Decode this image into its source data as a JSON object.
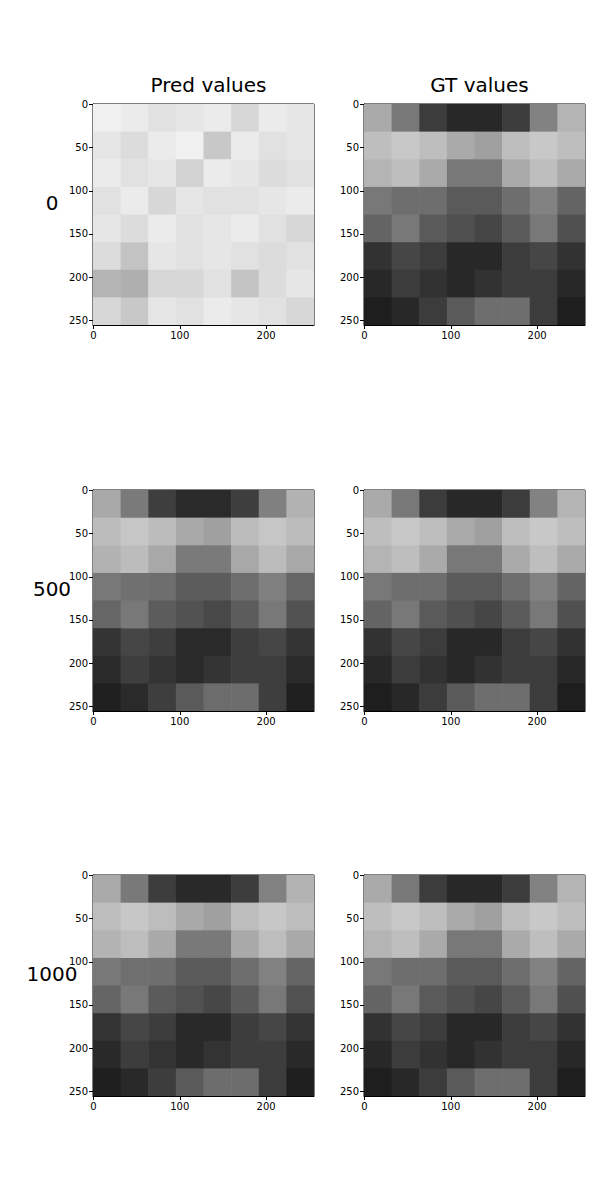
{
  "chart_data": [
    {
      "type": "image",
      "title": "Pred values",
      "ylabel": "0",
      "xlim": [
        -0.5,
        255.5
      ],
      "ylim": [
        255.5,
        -0.5
      ],
      "xticks": [
        0,
        100,
        200
      ],
      "yticks": [
        0,
        50,
        100,
        150,
        200,
        250
      ],
      "cells": [
        [
          240,
          235,
          225,
          230,
          235,
          215,
          235,
          230
        ],
        [
          230,
          220,
          235,
          240,
          200,
          235,
          225,
          230
        ],
        [
          235,
          225,
          230,
          210,
          235,
          230,
          220,
          225
        ],
        [
          225,
          235,
          215,
          230,
          225,
          225,
          230,
          235
        ],
        [
          230,
          220,
          235,
          225,
          230,
          235,
          225,
          215
        ],
        [
          220,
          195,
          230,
          225,
          230,
          225,
          220,
          225
        ],
        [
          180,
          175,
          215,
          215,
          225,
          195,
          220,
          230
        ],
        [
          215,
          200,
          230,
          225,
          235,
          230,
          225,
          215
        ]
      ]
    },
    {
      "type": "image",
      "title": "GT values",
      "xlim": [
        -0.5,
        255.5
      ],
      "ylim": [
        255.5,
        -0.5
      ],
      "xticks": [
        0,
        100,
        200
      ],
      "yticks": [
        0,
        50,
        100,
        150,
        200,
        250
      ],
      "cells": [
        [
          170,
          120,
          60,
          40,
          40,
          60,
          130,
          180
        ],
        [
          190,
          200,
          190,
          170,
          160,
          190,
          200,
          190
        ],
        [
          180,
          190,
          170,
          120,
          120,
          170,
          190,
          170
        ],
        [
          120,
          110,
          110,
          90,
          90,
          110,
          130,
          100
        ],
        [
          100,
          120,
          90,
          80,
          70,
          90,
          120,
          80
        ],
        [
          50,
          70,
          60,
          40,
          40,
          60,
          70,
          50
        ],
        [
          40,
          60,
          50,
          40,
          50,
          60,
          60,
          40
        ],
        [
          30,
          40,
          60,
          90,
          110,
          110,
          60,
          30
        ]
      ]
    },
    {
      "type": "image",
      "ylabel": "500",
      "xlim": [
        -0.5,
        255.5
      ],
      "ylim": [
        255.5,
        -0.5
      ],
      "xticks": [
        0,
        100,
        200
      ],
      "yticks": [
        0,
        50,
        100,
        150,
        200,
        250
      ],
      "cells": [
        [
          168,
          122,
          62,
          42,
          42,
          62,
          128,
          178
        ],
        [
          188,
          198,
          188,
          168,
          160,
          188,
          198,
          188
        ],
        [
          178,
          188,
          168,
          122,
          122,
          168,
          188,
          168
        ],
        [
          120,
          112,
          110,
          92,
          92,
          110,
          128,
          102
        ],
        [
          102,
          120,
          92,
          82,
          72,
          92,
          120,
          82
        ],
        [
          52,
          70,
          62,
          42,
          42,
          62,
          70,
          52
        ],
        [
          42,
          62,
          52,
          42,
          52,
          62,
          62,
          42
        ],
        [
          32,
          42,
          62,
          90,
          108,
          108,
          62,
          32
        ]
      ]
    },
    {
      "type": "image",
      "xlim": [
        -0.5,
        255.5
      ],
      "ylim": [
        255.5,
        -0.5
      ],
      "xticks": [
        0,
        100,
        200
      ],
      "yticks": [
        0,
        50,
        100,
        150,
        200,
        250
      ],
      "cells": [
        [
          170,
          120,
          60,
          40,
          40,
          60,
          130,
          180
        ],
        [
          190,
          200,
          190,
          170,
          160,
          190,
          200,
          190
        ],
        [
          180,
          190,
          170,
          120,
          120,
          170,
          190,
          170
        ],
        [
          120,
          110,
          110,
          90,
          90,
          110,
          130,
          100
        ],
        [
          100,
          120,
          90,
          80,
          70,
          90,
          120,
          80
        ],
        [
          50,
          70,
          60,
          40,
          40,
          60,
          70,
          50
        ],
        [
          40,
          60,
          50,
          40,
          50,
          60,
          60,
          40
        ],
        [
          30,
          40,
          60,
          90,
          110,
          110,
          60,
          30
        ]
      ]
    },
    {
      "type": "image",
      "ylabel": "1000",
      "xlim": [
        -0.5,
        255.5
      ],
      "ylim": [
        255.5,
        -0.5
      ],
      "xticks": [
        0,
        100,
        200
      ],
      "yticks": [
        0,
        50,
        100,
        150,
        200,
        250
      ],
      "cells": [
        [
          170,
          121,
          61,
          41,
          41,
          61,
          129,
          179
        ],
        [
          189,
          199,
          189,
          169,
          160,
          189,
          199,
          189
        ],
        [
          179,
          189,
          169,
          121,
          121,
          169,
          189,
          169
        ],
        [
          120,
          111,
          110,
          91,
          91,
          110,
          129,
          101
        ],
        [
          101,
          120,
          91,
          81,
          71,
          91,
          120,
          81
        ],
        [
          51,
          70,
          61,
          41,
          41,
          61,
          70,
          51
        ],
        [
          41,
          61,
          51,
          41,
          51,
          61,
          61,
          41
        ],
        [
          31,
          41,
          61,
          90,
          109,
          109,
          61,
          31
        ]
      ]
    },
    {
      "type": "image",
      "xlim": [
        -0.5,
        255.5
      ],
      "ylim": [
        255.5,
        -0.5
      ],
      "xticks": [
        0,
        100,
        200
      ],
      "yticks": [
        0,
        50,
        100,
        150,
        200,
        250
      ],
      "cells": [
        [
          170,
          120,
          60,
          40,
          40,
          60,
          130,
          180
        ],
        [
          190,
          200,
          190,
          170,
          160,
          190,
          200,
          190
        ],
        [
          180,
          190,
          170,
          120,
          120,
          170,
          190,
          170
        ],
        [
          120,
          110,
          110,
          90,
          90,
          110,
          130,
          100
        ],
        [
          100,
          120,
          90,
          80,
          70,
          90,
          120,
          80
        ],
        [
          50,
          70,
          60,
          40,
          40,
          60,
          70,
          50
        ],
        [
          40,
          60,
          50,
          40,
          50,
          60,
          60,
          40
        ],
        [
          30,
          40,
          60,
          90,
          110,
          110,
          60,
          30
        ]
      ]
    }
  ]
}
